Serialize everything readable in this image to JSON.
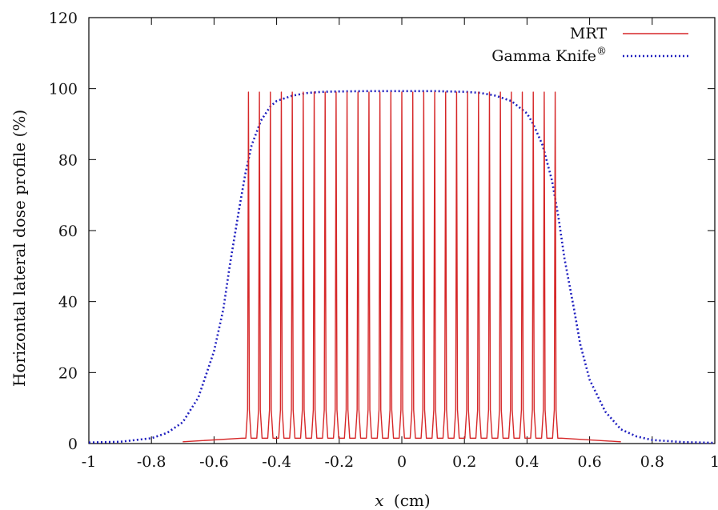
{
  "chart_data": {
    "type": "line",
    "title": "",
    "xlabel": "x",
    "xlabel_unit": "(cm)",
    "ylabel": "Horizontal lateral dose profile (%)",
    "xlim": [
      -1,
      1
    ],
    "ylim": [
      0,
      120
    ],
    "x_ticks": [
      -1,
      -0.8,
      -0.6,
      -0.4,
      -0.2,
      0,
      0.2,
      0.4,
      0.6,
      0.8,
      1
    ],
    "x_tick_labels": [
      "-1",
      "-0.8",
      "-0.6",
      "-0.4",
      "-0.2",
      "0",
      "0.2",
      "0.4",
      "0.6",
      "0.8",
      "1"
    ],
    "y_ticks": [
      0,
      20,
      40,
      60,
      80,
      100,
      120
    ],
    "y_tick_labels": [
      "0",
      "20",
      "40",
      "60",
      "80",
      "100",
      "120"
    ],
    "grid": false,
    "legend_position": "top-right",
    "series": [
      {
        "name": "MRT",
        "color": "#d62728",
        "style": "solid",
        "peak_x": [
          -0.49,
          -0.455,
          -0.42,
          -0.385,
          -0.35,
          -0.315,
          -0.28,
          -0.245,
          -0.21,
          -0.175,
          -0.14,
          -0.105,
          -0.07,
          -0.035,
          0,
          0.035,
          0.07,
          0.105,
          0.14,
          0.175,
          0.21,
          0.245,
          0.28,
          0.315,
          0.35,
          0.385,
          0.42,
          0.455,
          0.49
        ],
        "peak_value": 99,
        "valley_value": 1.5,
        "tail_range": [
          -0.7,
          0.7
        ],
        "tail_value": 0.5
      },
      {
        "name": "Gamma Knife",
        "name_suffix": "®",
        "color": "#1f1fbf",
        "style": "dotted",
        "x": [
          -1,
          -0.9,
          -0.8,
          -0.75,
          -0.7,
          -0.65,
          -0.6,
          -0.57,
          -0.55,
          -0.52,
          -0.5,
          -0.48,
          -0.45,
          -0.42,
          -0.4,
          -0.35,
          -0.3,
          -0.25,
          -0.2,
          -0.1,
          0,
          0.1,
          0.2,
          0.25,
          0.3,
          0.35,
          0.4,
          0.42,
          0.45,
          0.48,
          0.5,
          0.52,
          0.55,
          0.57,
          0.6,
          0.65,
          0.7,
          0.75,
          0.8,
          0.9,
          1
        ],
        "y": [
          0.3,
          0.5,
          1.5,
          3,
          6,
          13,
          26,
          38,
          50,
          66,
          76,
          84,
          91,
          95,
          96.5,
          98,
          98.8,
          99.1,
          99.2,
          99.3,
          99.3,
          99.3,
          99.1,
          98.8,
          98,
          96.5,
          93,
          90,
          84,
          74,
          64,
          52,
          38,
          28,
          18,
          9,
          4,
          2,
          1,
          0.4,
          0.2
        ]
      }
    ]
  }
}
